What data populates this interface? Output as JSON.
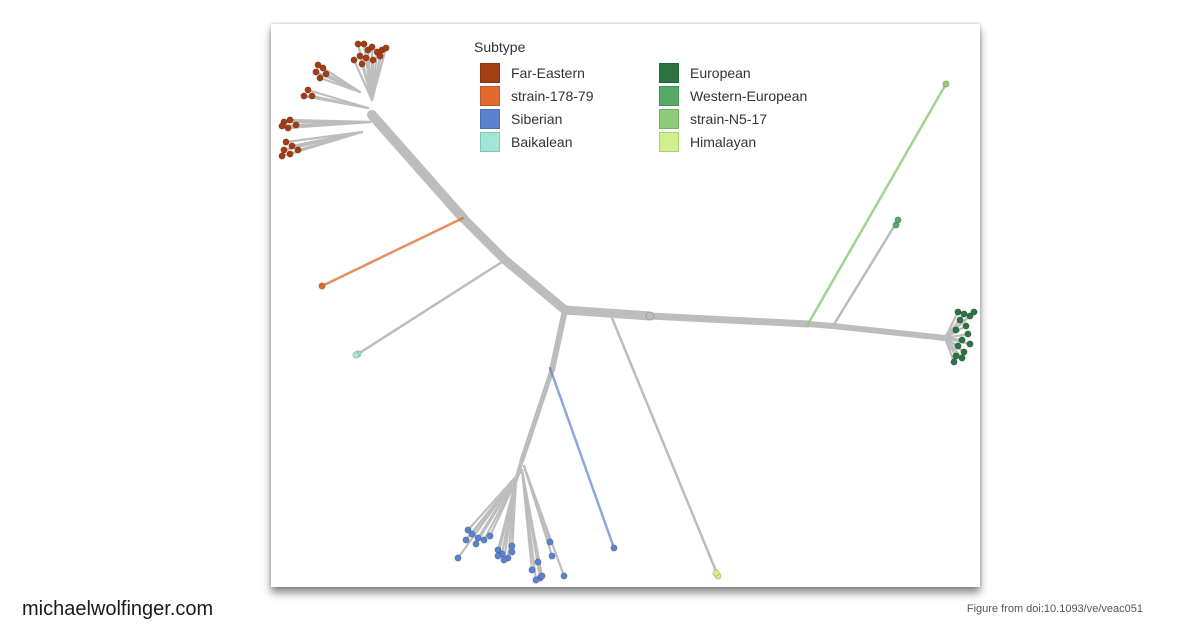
{
  "legend": {
    "title": "Subtype",
    "items": [
      {
        "label": "Far-Eastern",
        "color": "#a33d14"
      },
      {
        "label": "strain-178-79",
        "color": "#e06a2e"
      },
      {
        "label": "Siberian",
        "color": "#5b82cf"
      },
      {
        "label": "Baikalean",
        "color": "#a2e6d6"
      },
      {
        "label": "European",
        "color": "#2a7342"
      },
      {
        "label": "Western-European",
        "color": "#55aa66"
      },
      {
        "label": "strain-N5-17",
        "color": "#8fcc7a"
      },
      {
        "label": "Himalayan",
        "color": "#cff08a"
      }
    ]
  },
  "branch_color": "#bdbdbd",
  "footer": {
    "site": "michaelwolfinger.com",
    "credit": "Figure from doi:10.1093/ve/veac051"
  }
}
